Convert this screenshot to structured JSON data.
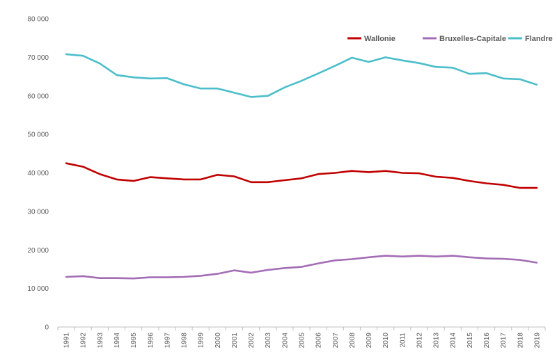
{
  "chart_data": {
    "type": "line",
    "title": "",
    "xlabel": "",
    "ylabel": "",
    "x": [
      "1991",
      "1992",
      "1993",
      "1994",
      "1995",
      "1996",
      "1997",
      "1998",
      "1999",
      "2000",
      "2001",
      "2002",
      "2003",
      "2004",
      "2005",
      "2006",
      "2007",
      "2008",
      "2009",
      "2010",
      "2011",
      "2012",
      "2013",
      "2014",
      "2015",
      "2016",
      "2017",
      "2018",
      "2019"
    ],
    "ylim": [
      0,
      80000
    ],
    "yticks": [
      0,
      10000,
      20000,
      30000,
      40000,
      50000,
      60000,
      70000,
      80000
    ],
    "ytick_labels": [
      "0",
      "10 000",
      "20 000",
      "30 000",
      "40 000",
      "50 000",
      "60 000",
      "70 000",
      "80 000"
    ],
    "grid": false,
    "legend_position": "top-right",
    "series": [
      {
        "name": "Wallonie",
        "color": "#c00000",
        "values": [
          42500,
          41600,
          39700,
          38300,
          37900,
          38900,
          38600,
          38300,
          38300,
          39500,
          39100,
          37600,
          37600,
          38100,
          38600,
          39700,
          40000,
          40500,
          40200,
          40500,
          40000,
          39900,
          39000,
          38700,
          37900,
          37300,
          36900,
          36100,
          36100
        ]
      },
      {
        "name": "Bruxelles-Capitale",
        "color": "#a36db5",
        "values": [
          13000,
          13200,
          12700,
          12700,
          12600,
          12900,
          12900,
          13000,
          13300,
          13800,
          14700,
          14100,
          14800,
          15300,
          15600,
          16500,
          17300,
          17600,
          18100,
          18500,
          18300,
          18500,
          18300,
          18500,
          18100,
          17800,
          17700,
          17400,
          16700
        ]
      },
      {
        "name": "Flandre",
        "color": "#4bbecb",
        "values": [
          70800,
          70400,
          68400,
          65400,
          64800,
          64500,
          64600,
          63000,
          61900,
          61900,
          60800,
          59700,
          60000,
          62200,
          63900,
          65800,
          67800,
          69900,
          68800,
          70000,
          69200,
          68500,
          67500,
          67300,
          65700,
          65900,
          64500,
          64300,
          62900
        ]
      }
    ]
  }
}
